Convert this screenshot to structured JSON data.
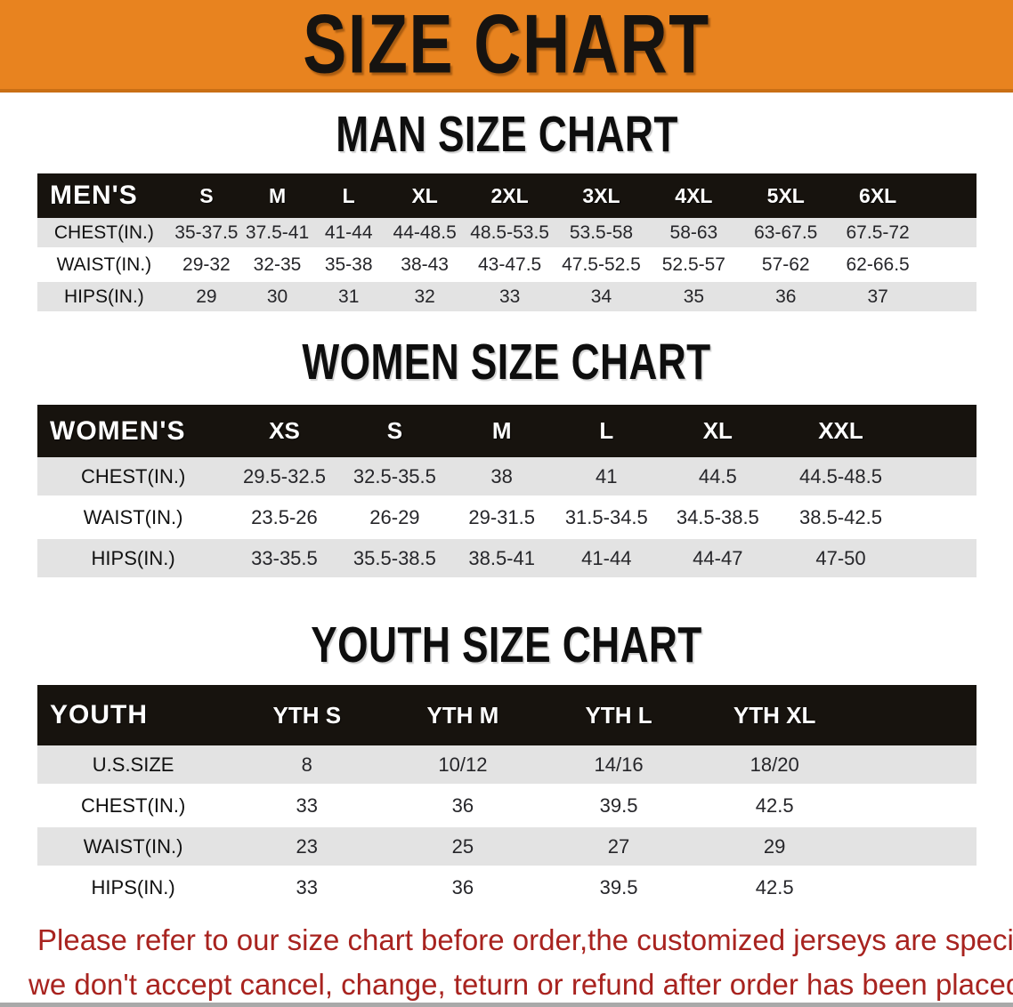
{
  "banner": {
    "title": "SIZE CHART",
    "bg_color": "#E8831F"
  },
  "sections": {
    "men": {
      "heading": "MAN SIZE CHART",
      "table": {
        "label": "MEN'S",
        "sizes": [
          "S",
          "M",
          "L",
          "XL",
          "2XL",
          "3XL",
          "4XL",
          "5XL",
          "6XL"
        ],
        "rows": [
          {
            "label": "CHEST(IN.)",
            "values": [
              "35-37.5",
              "37.5-41",
              "41-44",
              "44-48.5",
              "48.5-53.5",
              "53.5-58",
              "58-63",
              "63-67.5",
              "67.5-72"
            ]
          },
          {
            "label": "WAIST(IN.)",
            "values": [
              "29-32",
              "32-35",
              "35-38",
              "38-43",
              "43-47.5",
              "47.5-52.5",
              "52.5-57",
              "57-62",
              "62-66.5"
            ]
          },
          {
            "label": "HIPS(IN.)",
            "values": [
              "29",
              "30",
              "31",
              "32",
              "33",
              "34",
              "35",
              "36",
              "37"
            ]
          }
        ]
      }
    },
    "women": {
      "heading": "WOMEN SIZE CHART",
      "table": {
        "label": "WOMEN'S",
        "sizes": [
          "XS",
          "S",
          "M",
          "L",
          "XL",
          "XXL"
        ],
        "rows": [
          {
            "label": "CHEST(IN.)",
            "values": [
              "29.5-32.5",
              "32.5-35.5",
              "38",
              "41",
              "44.5",
              "44.5-48.5"
            ]
          },
          {
            "label": "WAIST(IN.)",
            "values": [
              "23.5-26",
              "26-29",
              "29-31.5",
              "31.5-34.5",
              "34.5-38.5",
              "38.5-42.5"
            ]
          },
          {
            "label": "HIPS(IN.)",
            "values": [
              "33-35.5",
              "35.5-38.5",
              "38.5-41",
              "41-44",
              "44-47",
              "47-50"
            ]
          }
        ]
      }
    },
    "youth": {
      "heading": "YOUTH SIZE CHART",
      "table": {
        "label": "YOUTH",
        "sizes": [
          "YTH S",
          "YTH M",
          "YTH L",
          "YTH XL"
        ],
        "rows": [
          {
            "label": "U.S.SIZE",
            "values": [
              "8",
              "10/12",
              "14/16",
              "18/20"
            ]
          },
          {
            "label": "CHEST(IN.)",
            "values": [
              "33",
              "36",
              "39.5",
              "42.5"
            ]
          },
          {
            "label": "WAIST(IN.)",
            "values": [
              "23",
              "25",
              "27",
              "29"
            ]
          },
          {
            "label": "HIPS(IN.)",
            "values": [
              "33",
              "36",
              "39.5",
              "42.5"
            ]
          }
        ]
      }
    }
  },
  "disclaimer": {
    "line1": "Please refer to our size chart before order,the customized jerseys are special products,",
    "line2": "we don't accept cancel, change, teturn or refund after order has been placed!",
    "color": "#A8231F"
  },
  "colors": {
    "banner_bg": "#E8831F",
    "header_bar": "#17130E",
    "row_alt_gray": "#E3E3E3",
    "disclaimer_red": "#A8231F"
  }
}
